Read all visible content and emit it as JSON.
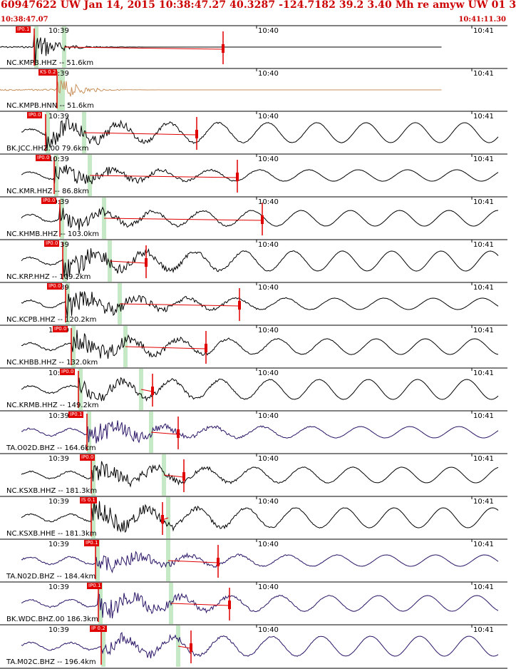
{
  "header": {
    "title": "60947622 UW Jan 14, 2015 10:38:47.27    40.3287 -124.7182 39.2 3.40 Mh re amyw UW 01   3",
    "start_time": "10:38:47.07",
    "end_time": "10:41:11.30"
  },
  "time_marks": [
    "10:39",
    "10:40",
    "10:41"
  ],
  "colors": {
    "trace_default": "#000000",
    "trace_hnn": "#c8905a",
    "trace_ta": "#2a1466",
    "pick": "#e00000",
    "window": "#bfe5bf",
    "divider": "#000000"
  },
  "channels": [
    {
      "label": "NC.KMPB.HHZ -- 51.6km",
      "pick": "IP0.1"
    },
    {
      "label": "NC.KMPB.HNN -- 51.6km",
      "pick": "KS 0.2"
    },
    {
      "label": "BK.JCC.HHZ.00 79.6km",
      "pick": "IP0.0"
    },
    {
      "label": "NC.KMR.HHZ -- 86.8km",
      "pick": "IP0.0"
    },
    {
      "label": "NC.KHMB.HHZ -- 103.0km",
      "pick": "IP0.0"
    },
    {
      "label": "NC.KRP.HHZ -- 109.2km",
      "pick": "IP0.0"
    },
    {
      "label": "NC.KCPB.HHZ -- 120.2km",
      "pick": "IP0.0"
    },
    {
      "label": "NC.KHBB.HHZ -- 132.0km",
      "pick": "IP0.0"
    },
    {
      "label": "NC.KRMB.HHZ -- 149.2km",
      "pick": "IP0.0"
    },
    {
      "label": "TA.O02D.BHZ -- 164.6km",
      "pick": "IP0.1"
    },
    {
      "label": "NC.KSXB.HHZ -- 181.3km",
      "pick": "IP0.0"
    },
    {
      "label": "NC.KSXB.HHE -- 181.3km",
      "pick": "IS 0.1"
    },
    {
      "label": "TA.N02D.BHZ -- 184.4km",
      "pick": "IP0.1"
    },
    {
      "label": "BK.WDC.BHZ.00 186.3km",
      "pick": "IP0.1"
    },
    {
      "label": "TA.M02C.BHZ -- 196.4km",
      "pick": "IP 0.2"
    }
  ]
}
